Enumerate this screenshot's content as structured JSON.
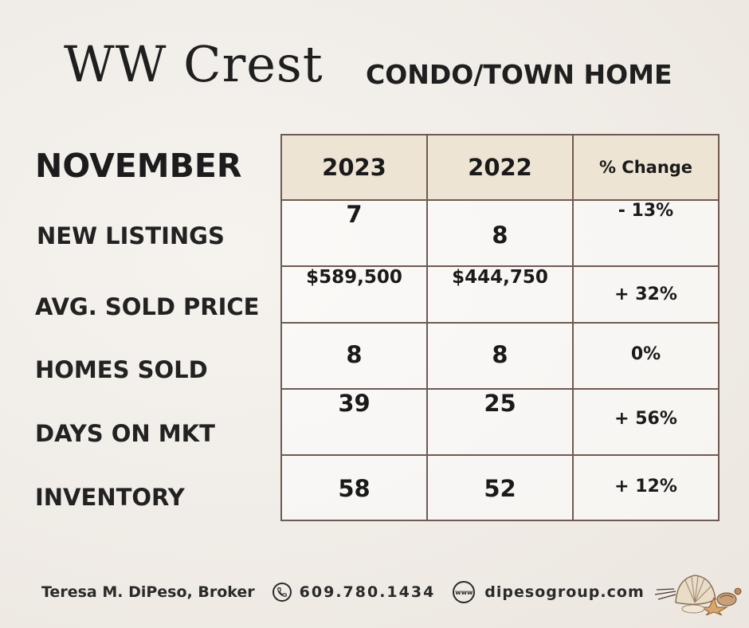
{
  "header": {
    "title": "WW Crest",
    "subtitle": "CONDO/TOWN HOME"
  },
  "table": {
    "month": "NOVEMBER",
    "columns": [
      "2023",
      "2022",
      "% Change"
    ],
    "rows": [
      {
        "label": "NEW LISTINGS",
        "y2023": "7",
        "y2022": "8",
        "change": "- 13%"
      },
      {
        "label": "AVG. SOLD PRICE",
        "y2023": "$589,500",
        "y2022": "$444,750",
        "change": "+ 32%"
      },
      {
        "label": "HOMES SOLD",
        "y2023": "8",
        "y2022": "8",
        "change": "0%"
      },
      {
        "label": "DAYS ON MKT",
        "y2023": "39",
        "y2022": "25",
        "change": "+ 56%"
      },
      {
        "label": "INVENTORY",
        "y2023": "58",
        "y2022": "52",
        "change": "+ 12%"
      }
    ]
  },
  "footer": {
    "broker": "Teresa M. DiPeso, Broker",
    "phone_icon": "phone-icon",
    "phone": "609.780.1434",
    "web_icon": "www-icon",
    "web_icon_text": "www",
    "website": "dipesogroup.com",
    "decoration": "seashells-icon"
  },
  "colors": {
    "border": "#6e5a52",
    "header_fill": "#eee4d4",
    "text": "#1c1c1c"
  }
}
